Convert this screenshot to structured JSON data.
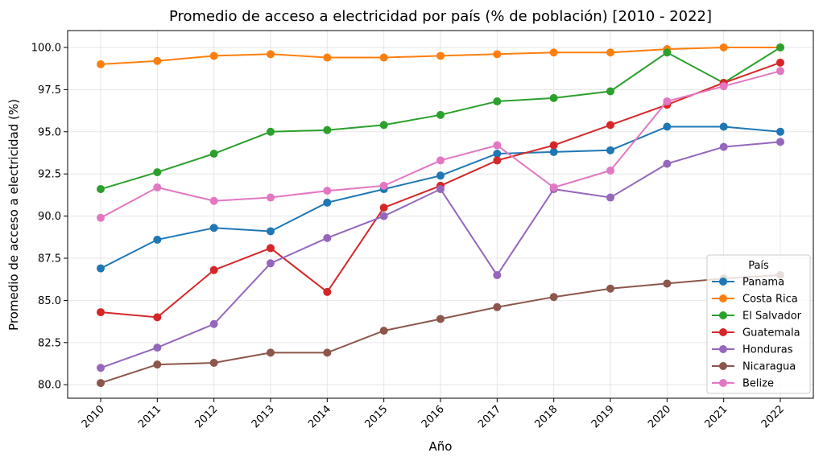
{
  "chart_data": {
    "type": "line",
    "title": "Promedio de acceso a electricidad por país (% de población) [2010 - 2022]",
    "xlabel": "Año",
    "ylabel": "Promedio de acceso a electricidad (%)",
    "x": [
      "2010",
      "2011",
      "2012",
      "2013",
      "2014",
      "2015",
      "2016",
      "2017",
      "2018",
      "2019",
      "2020",
      "2021",
      "2022"
    ],
    "ylim": [
      79.2,
      101.0
    ],
    "yticks": [
      "80.0",
      "82.5",
      "85.0",
      "87.5",
      "90.0",
      "92.5",
      "95.0",
      "97.5",
      "100.0"
    ],
    "grid": true,
    "legend": {
      "title": "País",
      "placement": "lower-right"
    },
    "series": [
      {
        "name": "Panama",
        "color": "#1f77b4",
        "values": [
          86.9,
          88.6,
          89.3,
          89.1,
          90.8,
          91.6,
          92.4,
          93.7,
          93.8,
          93.9,
          95.3,
          95.3,
          95.0
        ]
      },
      {
        "name": "Costa Rica",
        "color": "#ff7f0e",
        "values": [
          99.0,
          99.2,
          99.5,
          99.6,
          99.4,
          99.4,
          99.5,
          99.6,
          99.7,
          99.7,
          99.9,
          100.0,
          100.0
        ]
      },
      {
        "name": "El Salvador",
        "color": "#2ca02c",
        "values": [
          91.6,
          92.6,
          93.7,
          95.0,
          95.1,
          95.4,
          96.0,
          96.8,
          97.0,
          97.4,
          99.7,
          97.9,
          100.0
        ]
      },
      {
        "name": "Guatemala",
        "color": "#d62728",
        "values": [
          84.3,
          84.0,
          86.8,
          88.1,
          85.5,
          90.5,
          91.8,
          93.3,
          94.2,
          95.4,
          96.6,
          97.9,
          99.1
        ]
      },
      {
        "name": "Honduras",
        "color": "#9467bd",
        "values": [
          81.0,
          82.2,
          83.6,
          87.2,
          88.7,
          90.0,
          91.6,
          86.5,
          91.6,
          91.1,
          93.1,
          94.1,
          94.4
        ]
      },
      {
        "name": "Nicaragua",
        "color": "#8c564b",
        "values": [
          80.1,
          81.2,
          81.3,
          81.9,
          81.9,
          83.2,
          83.9,
          84.6,
          85.2,
          85.7,
          86.0,
          86.3,
          86.5
        ]
      },
      {
        "name": "Belize",
        "color": "#e377c2",
        "values": [
          89.9,
          91.7,
          90.9,
          91.1,
          91.5,
          91.8,
          93.3,
          94.2,
          91.7,
          92.7,
          96.8,
          97.7,
          98.6
        ]
      }
    ]
  }
}
